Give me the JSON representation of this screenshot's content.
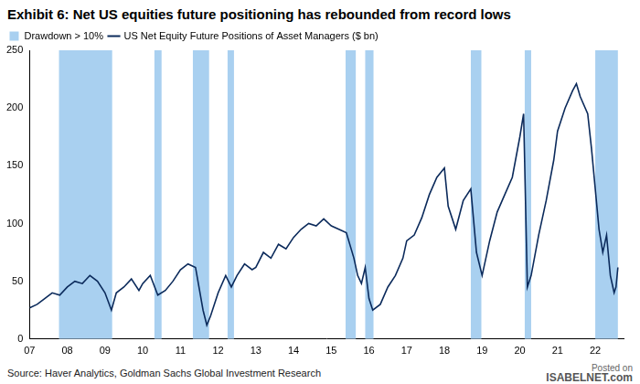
{
  "chart_data": {
    "type": "line",
    "title": "Exhibit 6: Net US equities future positioning has rebounded from record lows",
    "source": "Source: Haver Analytics, Goldman Sachs Global Investment Research",
    "watermark": [
      "Posted on",
      "ISABELNET.com"
    ],
    "x": [
      2007.0,
      2007.2,
      2007.4,
      2007.6,
      2007.8,
      2008.0,
      2008.2,
      2008.4,
      2008.6,
      2008.8,
      2009.0,
      2009.17,
      2009.3,
      2009.5,
      2009.7,
      2009.9,
      2010.0,
      2010.2,
      2010.4,
      2010.6,
      2010.8,
      2011.0,
      2011.2,
      2011.4,
      2011.6,
      2011.7,
      2011.8,
      2012.0,
      2012.2,
      2012.35,
      2012.5,
      2012.7,
      2012.9,
      2013.0,
      2013.2,
      2013.4,
      2013.6,
      2013.8,
      2014.0,
      2014.2,
      2014.4,
      2014.6,
      2014.8,
      2015.0,
      2015.2,
      2015.4,
      2015.6,
      2015.7,
      2015.8,
      2015.9,
      2016.0,
      2016.1,
      2016.3,
      2016.5,
      2016.7,
      2016.9,
      2017.0,
      2017.2,
      2017.4,
      2017.6,
      2017.8,
      2018.0,
      2018.1,
      2018.3,
      2018.5,
      2018.7,
      2018.85,
      2019.0,
      2019.2,
      2019.4,
      2019.6,
      2019.8,
      2020.0,
      2020.1,
      2020.2,
      2020.3,
      2020.5,
      2020.7,
      2020.9,
      2021.0,
      2021.2,
      2021.4,
      2021.5,
      2021.6,
      2021.8,
      2021.9,
      2022.0,
      2022.1,
      2022.2,
      2022.3,
      2022.4,
      2022.5,
      2022.55,
      2022.6
    ],
    "series": [
      {
        "name": "US Net Equity Future Positions of Asset Managers ($ bn)",
        "color": "#0b2a5b",
        "values": [
          27,
          30,
          35,
          40,
          38,
          45,
          50,
          48,
          55,
          50,
          40,
          25,
          40,
          45,
          52,
          42,
          48,
          55,
          38,
          42,
          50,
          60,
          65,
          62,
          25,
          12,
          20,
          40,
          55,
          45,
          55,
          65,
          60,
          62,
          75,
          70,
          82,
          78,
          88,
          95,
          100,
          98,
          104,
          98,
          95,
          92,
          70,
          55,
          48,
          62,
          35,
          25,
          30,
          45,
          55,
          70,
          85,
          90,
          105,
          125,
          140,
          148,
          115,
          95,
          120,
          130,
          75,
          55,
          85,
          110,
          125,
          140,
          175,
          195,
          45,
          55,
          90,
          120,
          155,
          180,
          200,
          215,
          221,
          210,
          195,
          165,
          130,
          95,
          75,
          90,
          55,
          40,
          45,
          62
        ]
      }
    ],
    "bands": {
      "name": "Drawdown > 10%",
      "color": "#a9d0f0",
      "ranges": [
        [
          2007.78,
          2009.19
        ],
        [
          2010.31,
          2010.5
        ],
        [
          2011.33,
          2011.76
        ],
        [
          2012.25,
          2012.42
        ],
        [
          2015.38,
          2015.65
        ],
        [
          2015.9,
          2016.12
        ],
        [
          2018.7,
          2018.98
        ],
        [
          2020.13,
          2020.3
        ],
        [
          2022.0,
          2022.6
        ]
      ]
    },
    "xlim": [
      2007,
      2022.75
    ],
    "xticks": [
      {
        "value": 2007,
        "label": "07"
      },
      {
        "value": 2008,
        "label": "08"
      },
      {
        "value": 2009,
        "label": "09"
      },
      {
        "value": 2010,
        "label": "10"
      },
      {
        "value": 2011,
        "label": "11"
      },
      {
        "value": 2012,
        "label": "12"
      },
      {
        "value": 2013,
        "label": "13"
      },
      {
        "value": 2014,
        "label": "14"
      },
      {
        "value": 2015,
        "label": "15"
      },
      {
        "value": 2016,
        "label": "16"
      },
      {
        "value": 2017,
        "label": "17"
      },
      {
        "value": 2018,
        "label": "18"
      },
      {
        "value": 2019,
        "label": "19"
      },
      {
        "value": 2020,
        "label": "20"
      },
      {
        "value": 2021,
        "label": "21"
      },
      {
        "value": 2022,
        "label": "22"
      }
    ],
    "ylim": [
      0,
      250
    ],
    "yticks": [
      0,
      50,
      100,
      150,
      200,
      250
    ],
    "grid": false,
    "legend": "top-left"
  }
}
